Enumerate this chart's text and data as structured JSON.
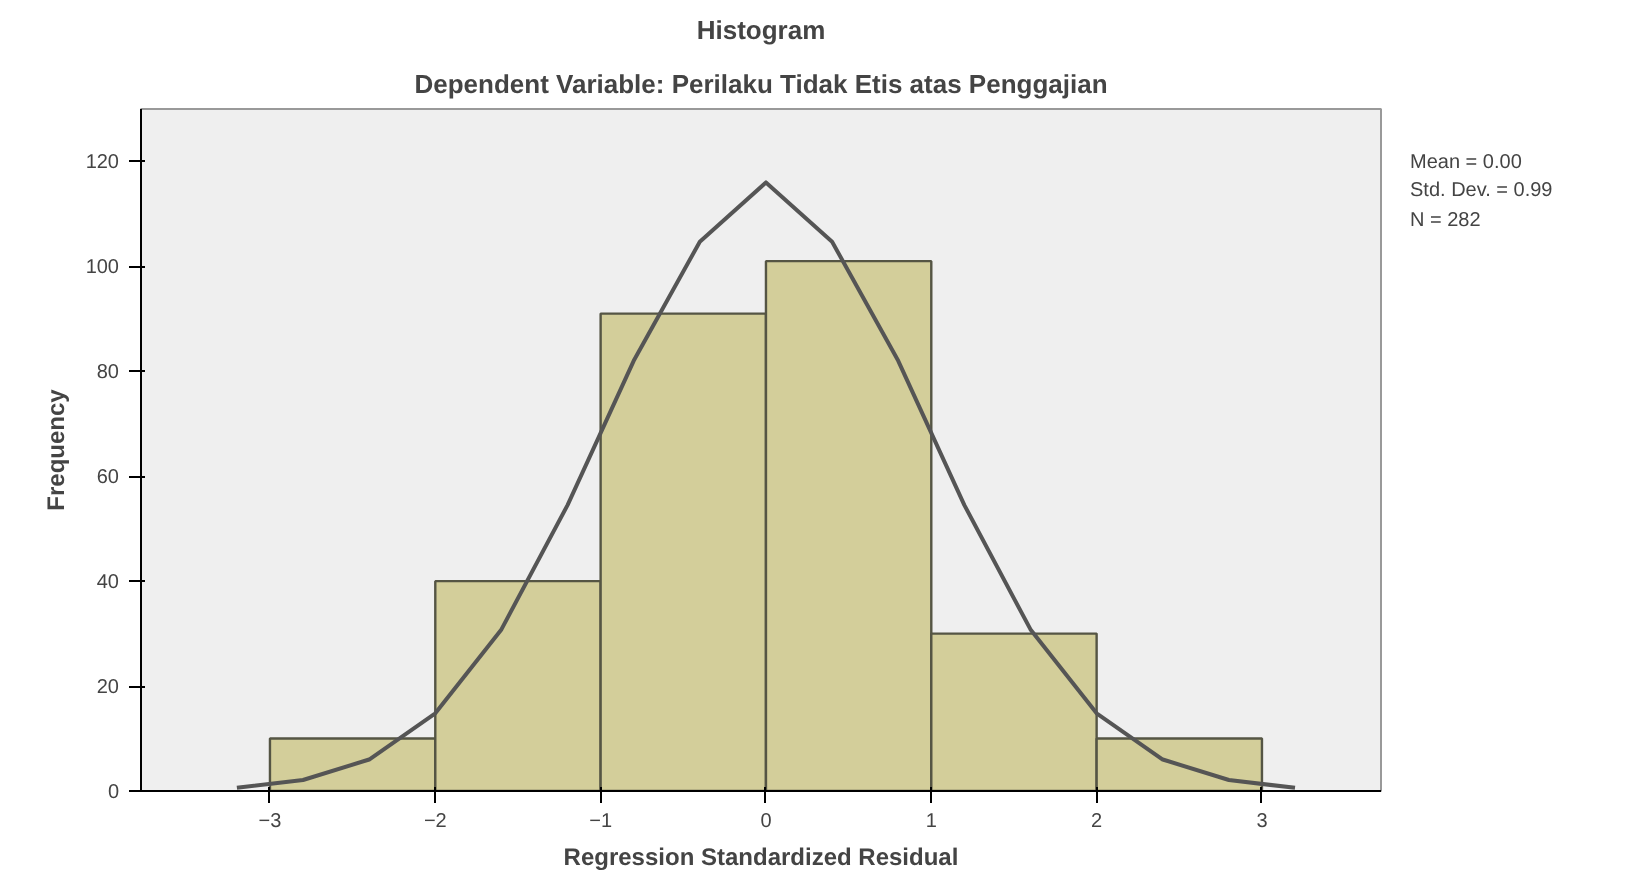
{
  "chart_data": {
    "type": "histogram",
    "title": "Histogram",
    "subtitle": "Dependent Variable: Perilaku Tidak Etis atas Penggajian",
    "xlabel": "Regression Standardized Residual",
    "ylabel": "Frequency",
    "bins": [
      -3,
      -2,
      -1,
      0,
      1,
      2,
      3
    ],
    "values": [
      10,
      40,
      91,
      101,
      30,
      10
    ],
    "color": "#d3ce9a",
    "xlim": [
      -3.78,
      3.72
    ],
    "xticks": [
      -3,
      -2,
      -1,
      0,
      1,
      2,
      3
    ],
    "ylim": [
      0,
      130
    ],
    "yticks": [
      0,
      20,
      40,
      60,
      80,
      100,
      120
    ],
    "grid": false,
    "series": [
      {
        "type": "line",
        "color": "#555555",
        "x": [
          -3.2,
          -2.8,
          -2.4,
          -2.0,
          -1.6,
          -1.2,
          -0.8,
          -0.4,
          0,
          0.4,
          0.8,
          1.2,
          1.6,
          2.0,
          2.4,
          2.8,
          3.2
        ],
        "values": [
          0.6,
          2.1,
          6.0,
          14.8,
          30.8,
          54.5,
          82.0,
          104.7,
          116,
          104.7,
          82.0,
          54.5,
          30.8,
          14.8,
          6.0,
          2.1,
          0.6
        ]
      }
    ],
    "annotations": [
      "Mean = 0.00",
      "Std. Dev. = 0.99",
      "N = 282"
    ]
  }
}
